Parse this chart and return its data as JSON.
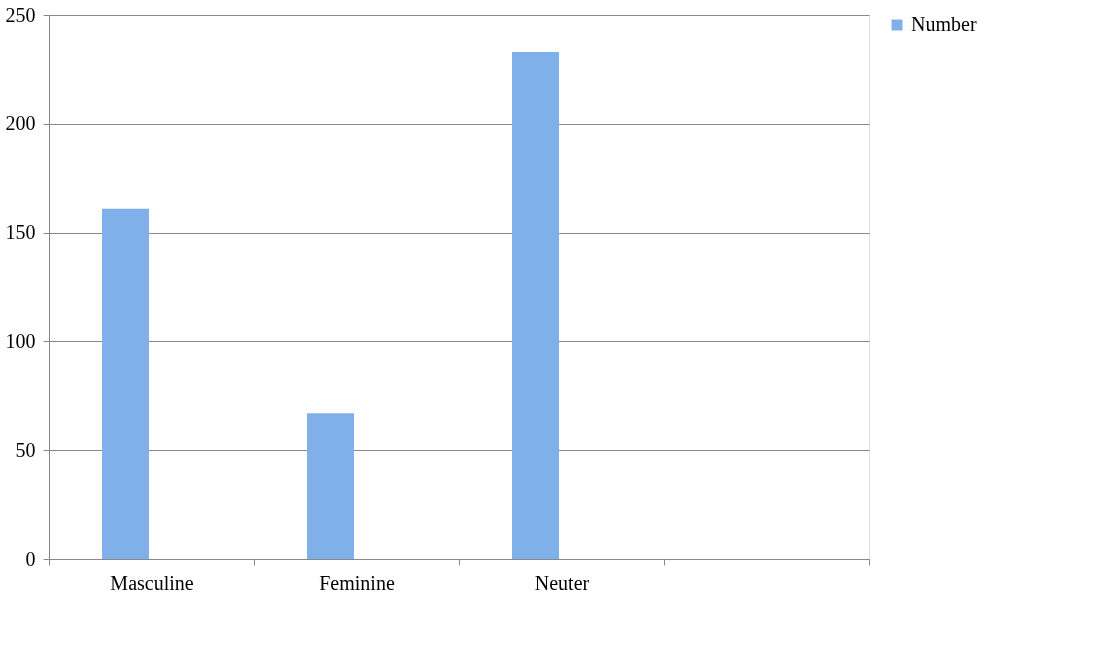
{
  "chart_data": {
    "type": "bar",
    "categories": [
      "Masculine",
      "Feminine",
      "Neuter",
      null
    ],
    "series": [
      {
        "name": "Number",
        "color": "#7fb0ea",
        "values": [
          161,
          67,
          233,
          null
        ]
      }
    ],
    "ylim": [
      0,
      250
    ],
    "yticks": [
      0,
      50,
      100,
      150,
      200,
      250
    ],
    "grid": "y",
    "legend": "right"
  }
}
